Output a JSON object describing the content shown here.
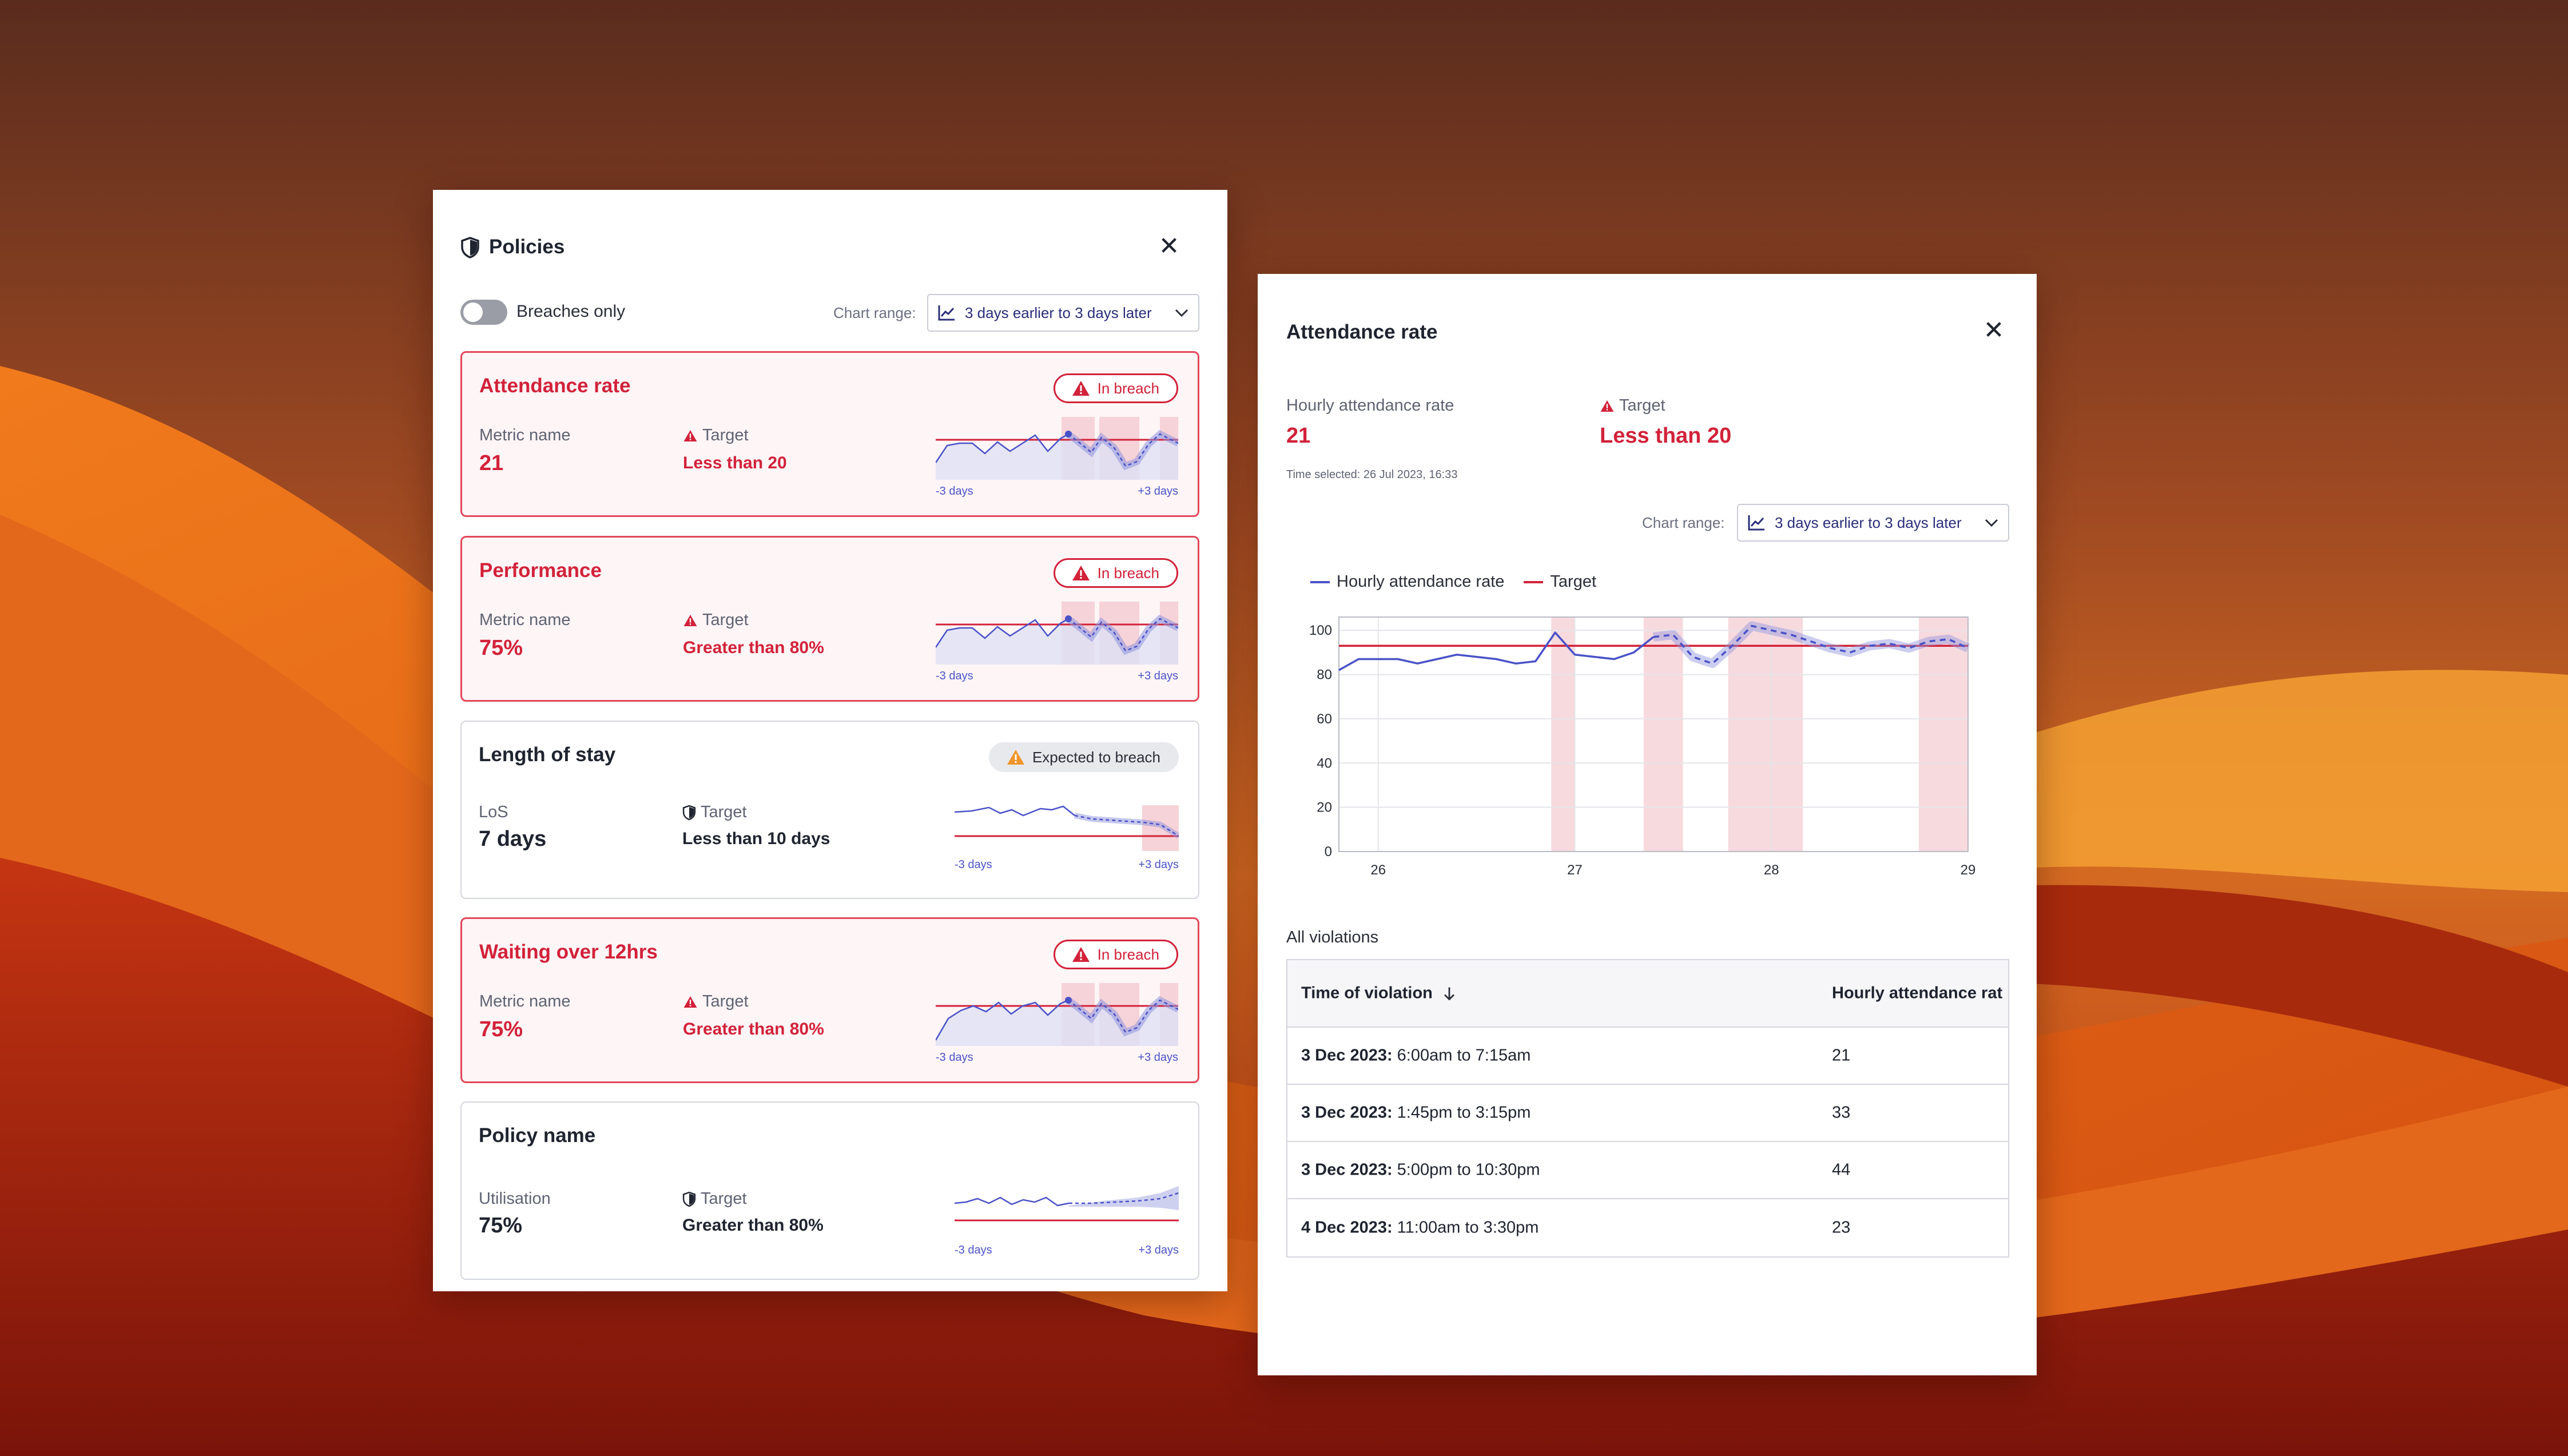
{
  "policies_panel": {
    "title": "Policies",
    "close_icon": "close-icon",
    "toggle_label": "Breaches only",
    "chart_range_label": "Chart range:",
    "chart_range_value": "3 days earlier to 3 days later",
    "cards": [
      {
        "title": "Attendance rate",
        "status": "In breach",
        "metric_label": "Metric name",
        "metric_value": "21",
        "target_label": "Target",
        "target_value": "Less than 20",
        "range_start": "-3 days",
        "range_end": "+3 days"
      },
      {
        "title": "Performance",
        "status": "In breach",
        "metric_label": "Metric name",
        "metric_value": "75%",
        "target_label": "Target",
        "target_value": "Greater than 80%",
        "range_start": "-3 days",
        "range_end": "+3 days"
      },
      {
        "title": "Length of stay",
        "status": "Expected to breach",
        "metric_label": "LoS",
        "metric_value": "7 days",
        "target_label": "Target",
        "target_value": "Less than 10 days",
        "range_start": "-3 days",
        "range_end": "+3 days"
      },
      {
        "title": "Waiting over 12hrs",
        "status": "In breach",
        "metric_label": "Metric name",
        "metric_value": "75%",
        "target_label": "Target",
        "target_value": "Greater than 80%",
        "range_start": "-3 days",
        "range_end": "+3 days"
      },
      {
        "title": "Policy name",
        "metric_label": "Utilisation",
        "metric_value": "75%",
        "target_label": "Target",
        "target_value": "Greater than 80%",
        "range_start": "-3 days",
        "range_end": "+3 days"
      }
    ]
  },
  "attendance_panel": {
    "title": "Attendance rate",
    "metric_label": "Hourly attendance rate",
    "metric_value": "21",
    "target_label": "Target",
    "target_value": "Less than 20",
    "time_selected": "Time selected: 26 Jul 2023, 16:33",
    "chart_range_label": "Chart range:",
    "chart_range_value": "3 days earlier to 3 days later",
    "section_title": "All violations",
    "table": {
      "col_time": "Time of violation",
      "col_rate": "Hourly attendance rat",
      "rows": [
        {
          "date": "3 Dec 2023:",
          "time": "6:00am to 7:15am",
          "rate": "21"
        },
        {
          "date": "3 Dec 2023:",
          "time": "1:45pm to 3:15pm",
          "rate": "33"
        },
        {
          "date": "3 Dec 2023:",
          "time": "5:00pm to 10:30pm",
          "rate": "44"
        },
        {
          "date": "4 Dec 2023:",
          "time": "11:00am to 3:30pm",
          "rate": "23"
        }
      ]
    }
  },
  "colors": {
    "breach_red": "#d2223a",
    "series_blue": "#4a52c8",
    "warning_orange": "#f0962b"
  },
  "chart_data": {
    "type": "line",
    "title": "",
    "xlabel": "",
    "ylabel": "",
    "ylim": [
      0,
      100
    ],
    "yticks": [
      0,
      20,
      40,
      60,
      80,
      100
    ],
    "x_tick_labels": [
      "26",
      "27",
      "28",
      "29"
    ],
    "x_tick_positions": [
      0.5,
      1.5,
      2.5,
      3.5
    ],
    "xlim": [
      0.3,
      3.5
    ],
    "series": [
      {
        "name": "Hourly attendance rate",
        "x": [
          0.3,
          0.4,
          0.5,
          0.6,
          0.7,
          0.8,
          0.9,
          1.0,
          1.1,
          1.2,
          1.3,
          1.4,
          1.5,
          1.6,
          1.7,
          1.8,
          1.9,
          2.0,
          2.1,
          2.2,
          2.3,
          2.4,
          2.5,
          2.6,
          2.7,
          2.8,
          2.9,
          3.0,
          3.1,
          3.2,
          3.3,
          3.4,
          3.5
        ],
        "y": [
          82,
          87,
          87,
          87,
          85,
          87,
          89,
          88,
          87,
          85,
          86,
          99,
          89,
          88,
          87,
          90,
          97,
          98,
          88,
          85,
          93,
          102,
          100,
          98,
          95,
          92,
          90,
          93,
          94,
          92,
          95,
          96,
          92
        ]
      },
      {
        "name": "Target",
        "x": [
          0.3,
          3.5
        ],
        "y": [
          93,
          93
        ]
      }
    ],
    "breach_bands": [
      [
        1.38,
        1.5
      ],
      [
        1.85,
        2.05
      ],
      [
        2.28,
        2.66
      ],
      [
        3.25,
        3.5
      ]
    ],
    "legend": "top-left"
  }
}
